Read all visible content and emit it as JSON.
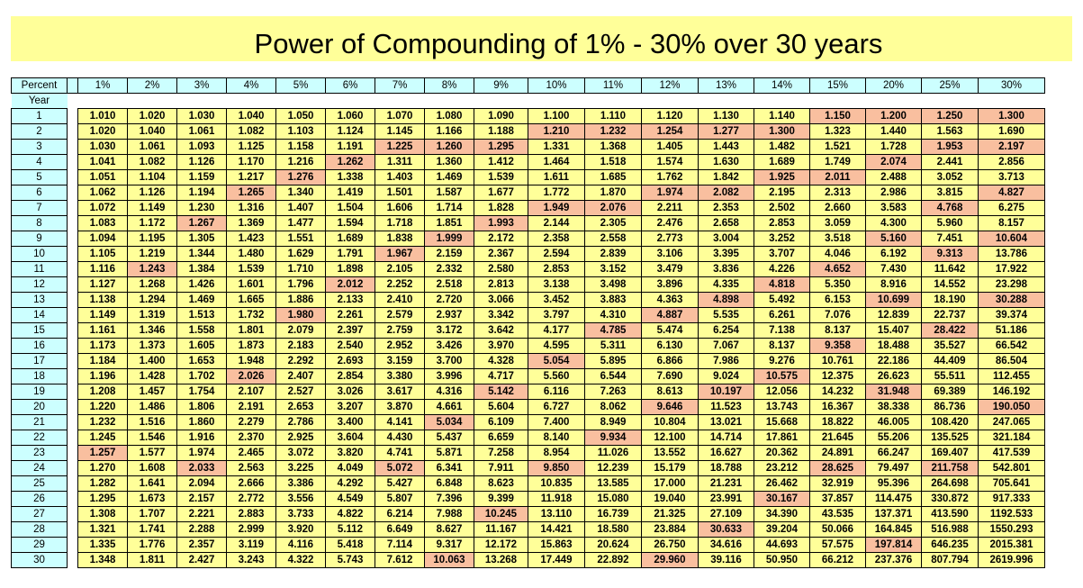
{
  "title": "Power of Compounding of 1% - 30% over 30 years",
  "header": {
    "corner_label": "Percent",
    "year_label": "Year",
    "percents": [
      "1%",
      "2%",
      "3%",
      "4%",
      "5%",
      "6%",
      "7%",
      "8%",
      "9%",
      "10%",
      "11%",
      "12%",
      "13%",
      "14%",
      "15%",
      "20%",
      "25%",
      "30%"
    ]
  },
  "colors": {
    "title_band": "#ffff99",
    "header_fill": "#ccffff",
    "cell_fill": "#ffff99",
    "highlight_fill": "#f9bf9f"
  },
  "rows": [
    {
      "year": "1",
      "values": [
        "1.010",
        "1.020",
        "1.030",
        "1.040",
        "1.050",
        "1.060",
        "1.070",
        "1.080",
        "1.090",
        "1.100",
        "1.110",
        "1.120",
        "1.130",
        "1.140",
        "1.150",
        "1.200",
        "1.250",
        "1.300"
      ],
      "highlight": [
        14,
        15,
        16,
        17
      ]
    },
    {
      "year": "2",
      "values": [
        "1.020",
        "1.040",
        "1.061",
        "1.082",
        "1.103",
        "1.124",
        "1.145",
        "1.166",
        "1.188",
        "1.210",
        "1.232",
        "1.254",
        "1.277",
        "1.300",
        "1.323",
        "1.440",
        "1.563",
        "1.690"
      ],
      "highlight": [
        9,
        10,
        11,
        12,
        13
      ]
    },
    {
      "year": "3",
      "values": [
        "1.030",
        "1.061",
        "1.093",
        "1.125",
        "1.158",
        "1.191",
        "1.225",
        "1.260",
        "1.295",
        "1.331",
        "1.368",
        "1.405",
        "1.443",
        "1.482",
        "1.521",
        "1.728",
        "1.953",
        "2.197"
      ],
      "highlight": [
        6,
        7,
        8,
        16,
        17
      ]
    },
    {
      "year": "4",
      "values": [
        "1.041",
        "1.082",
        "1.126",
        "1.170",
        "1.216",
        "1.262",
        "1.311",
        "1.360",
        "1.412",
        "1.464",
        "1.518",
        "1.574",
        "1.630",
        "1.689",
        "1.749",
        "2.074",
        "2.441",
        "2.856"
      ],
      "highlight": [
        5,
        15
      ]
    },
    {
      "year": "5",
      "values": [
        "1.051",
        "1.104",
        "1.159",
        "1.217",
        "1.276",
        "1.338",
        "1.403",
        "1.469",
        "1.539",
        "1.611",
        "1.685",
        "1.762",
        "1.842",
        "1.925",
        "2.011",
        "2.488",
        "3.052",
        "3.713"
      ],
      "highlight": [
        4,
        13,
        14
      ]
    },
    {
      "year": "6",
      "values": [
        "1.062",
        "1.126",
        "1.194",
        "1.265",
        "1.340",
        "1.419",
        "1.501",
        "1.587",
        "1.677",
        "1.772",
        "1.870",
        "1.974",
        "2.082",
        "2.195",
        "2.313",
        "2.986",
        "3.815",
        "4.827"
      ],
      "highlight": [
        3,
        11,
        12,
        17
      ]
    },
    {
      "year": "7",
      "values": [
        "1.072",
        "1.149",
        "1.230",
        "1.316",
        "1.407",
        "1.504",
        "1.606",
        "1.714",
        "1.828",
        "1.949",
        "2.076",
        "2.211",
        "2.353",
        "2.502",
        "2.660",
        "3.583",
        "4.768",
        "6.275"
      ],
      "highlight": [
        9,
        10,
        16
      ]
    },
    {
      "year": "8",
      "values": [
        "1.083",
        "1.172",
        "1.267",
        "1.369",
        "1.477",
        "1.594",
        "1.718",
        "1.851",
        "1.993",
        "2.144",
        "2.305",
        "2.476",
        "2.658",
        "2.853",
        "3.059",
        "4.300",
        "5.960",
        "8.157"
      ],
      "highlight": [
        2,
        8
      ]
    },
    {
      "year": "9",
      "values": [
        "1.094",
        "1.195",
        "1.305",
        "1.423",
        "1.551",
        "1.689",
        "1.838",
        "1.999",
        "2.172",
        "2.358",
        "2.558",
        "2.773",
        "3.004",
        "3.252",
        "3.518",
        "5.160",
        "7.451",
        "10.604"
      ],
      "highlight": [
        7,
        15,
        17
      ]
    },
    {
      "year": "10",
      "values": [
        "1.105",
        "1.219",
        "1.344",
        "1.480",
        "1.629",
        "1.791",
        "1.967",
        "2.159",
        "2.367",
        "2.594",
        "2.839",
        "3.106",
        "3.395",
        "3.707",
        "4.046",
        "6.192",
        "9.313",
        "13.786"
      ],
      "highlight": [
        6,
        16
      ]
    },
    {
      "year": "11",
      "values": [
        "1.116",
        "1.243",
        "1.384",
        "1.539",
        "1.710",
        "1.898",
        "2.105",
        "2.332",
        "2.580",
        "2.853",
        "3.152",
        "3.479",
        "3.836",
        "4.226",
        "4.652",
        "7.430",
        "11.642",
        "17.922"
      ],
      "highlight": [
        1,
        14
      ]
    },
    {
      "year": "12",
      "values": [
        "1.127",
        "1.268",
        "1.426",
        "1.601",
        "1.796",
        "2.012",
        "2.252",
        "2.518",
        "2.813",
        "3.138",
        "3.498",
        "3.896",
        "4.335",
        "4.818",
        "5.350",
        "8.916",
        "14.552",
        "23.298"
      ],
      "highlight": [
        5,
        13
      ]
    },
    {
      "year": "13",
      "values": [
        "1.138",
        "1.294",
        "1.469",
        "1.665",
        "1.886",
        "2.133",
        "2.410",
        "2.720",
        "3.066",
        "3.452",
        "3.883",
        "4.363",
        "4.898",
        "5.492",
        "6.153",
        "10.699",
        "18.190",
        "30.288"
      ],
      "highlight": [
        12,
        15,
        17
      ]
    },
    {
      "year": "14",
      "values": [
        "1.149",
        "1.319",
        "1.513",
        "1.732",
        "1.980",
        "2.261",
        "2.579",
        "2.937",
        "3.342",
        "3.797",
        "4.310",
        "4.887",
        "5.535",
        "6.261",
        "7.076",
        "12.839",
        "22.737",
        "39.374"
      ],
      "highlight": [
        4,
        11
      ]
    },
    {
      "year": "15",
      "values": [
        "1.161",
        "1.346",
        "1.558",
        "1.801",
        "2.079",
        "2.397",
        "2.759",
        "3.172",
        "3.642",
        "4.177",
        "4.785",
        "5.474",
        "6.254",
        "7.138",
        "8.137",
        "15.407",
        "28.422",
        "51.186"
      ],
      "highlight": [
        10,
        16
      ]
    },
    {
      "year": "16",
      "values": [
        "1.173",
        "1.373",
        "1.605",
        "1.873",
        "2.183",
        "2.540",
        "2.952",
        "3.426",
        "3.970",
        "4.595",
        "5.311",
        "6.130",
        "7.067",
        "8.137",
        "9.358",
        "18.488",
        "35.527",
        "66.542"
      ],
      "highlight": [
        14
      ]
    },
    {
      "year": "17",
      "values": [
        "1.184",
        "1.400",
        "1.653",
        "1.948",
        "2.292",
        "2.693",
        "3.159",
        "3.700",
        "4.328",
        "5.054",
        "5.895",
        "6.866",
        "7.986",
        "9.276",
        "10.761",
        "22.186",
        "44.409",
        "86.504"
      ],
      "highlight": [
        9
      ]
    },
    {
      "year": "18",
      "values": [
        "1.196",
        "1.428",
        "1.702",
        "2.026",
        "2.407",
        "2.854",
        "3.380",
        "3.996",
        "4.717",
        "5.560",
        "6.544",
        "7.690",
        "9.024",
        "10.575",
        "12.375",
        "26.623",
        "55.511",
        "112.455"
      ],
      "highlight": [
        3,
        13
      ]
    },
    {
      "year": "19",
      "values": [
        "1.208",
        "1.457",
        "1.754",
        "2.107",
        "2.527",
        "3.026",
        "3.617",
        "4.316",
        "5.142",
        "6.116",
        "7.263",
        "8.613",
        "10.197",
        "12.056",
        "14.232",
        "31.948",
        "69.389",
        "146.192"
      ],
      "highlight": [
        8,
        12,
        15
      ]
    },
    {
      "year": "20",
      "values": [
        "1.220",
        "1.486",
        "1.806",
        "2.191",
        "2.653",
        "3.207",
        "3.870",
        "4.661",
        "5.604",
        "6.727",
        "8.062",
        "9.646",
        "11.523",
        "13.743",
        "16.367",
        "38.338",
        "86.736",
        "190.050"
      ],
      "highlight": [
        11,
        17
      ]
    },
    {
      "year": "21",
      "values": [
        "1.232",
        "1.516",
        "1.860",
        "2.279",
        "2.786",
        "3.400",
        "4.141",
        "5.034",
        "6.109",
        "7.400",
        "8.949",
        "10.804",
        "13.021",
        "15.668",
        "18.822",
        "46.005",
        "108.420",
        "247.065"
      ],
      "highlight": [
        7
      ]
    },
    {
      "year": "22",
      "values": [
        "1.245",
        "1.546",
        "1.916",
        "2.370",
        "2.925",
        "3.604",
        "4.430",
        "5.437",
        "6.659",
        "8.140",
        "9.934",
        "12.100",
        "14.714",
        "17.861",
        "21.645",
        "55.206",
        "135.525",
        "321.184"
      ],
      "highlight": [
        10
      ]
    },
    {
      "year": "23",
      "values": [
        "1.257",
        "1.577",
        "1.974",
        "2.465",
        "3.072",
        "3.820",
        "4.741",
        "5.871",
        "7.258",
        "8.954",
        "11.026",
        "13.552",
        "16.627",
        "20.362",
        "24.891",
        "66.247",
        "169.407",
        "417.539"
      ],
      "highlight": [
        0
      ]
    },
    {
      "year": "24",
      "values": [
        "1.270",
        "1.608",
        "2.033",
        "2.563",
        "3.225",
        "4.049",
        "5.072",
        "6.341",
        "7.911",
        "9.850",
        "12.239",
        "15.179",
        "18.788",
        "23.212",
        "28.625",
        "79.497",
        "211.758",
        "542.801"
      ],
      "highlight": [
        2,
        6,
        9,
        14,
        16
      ]
    },
    {
      "year": "25",
      "values": [
        "1.282",
        "1.641",
        "2.094",
        "2.666",
        "3.386",
        "4.292",
        "5.427",
        "6.848",
        "8.623",
        "10.835",
        "13.585",
        "17.000",
        "21.231",
        "26.462",
        "32.919",
        "95.396",
        "264.698",
        "705.641"
      ],
      "highlight": []
    },
    {
      "year": "26",
      "values": [
        "1.295",
        "1.673",
        "2.157",
        "2.772",
        "3.556",
        "4.549",
        "5.807",
        "7.396",
        "9.399",
        "11.918",
        "15.080",
        "19.040",
        "23.991",
        "30.167",
        "37.857",
        "114.475",
        "330.872",
        "917.333"
      ],
      "highlight": [
        13
      ]
    },
    {
      "year": "27",
      "values": [
        "1.308",
        "1.707",
        "2.221",
        "2.883",
        "3.733",
        "4.822",
        "6.214",
        "7.988",
        "10.245",
        "13.110",
        "16.739",
        "21.325",
        "27.109",
        "34.390",
        "43.535",
        "137.371",
        "413.590",
        "1192.533"
      ],
      "highlight": [
        8
      ]
    },
    {
      "year": "28",
      "values": [
        "1.321",
        "1.741",
        "2.288",
        "2.999",
        "3.920",
        "5.112",
        "6.649",
        "8.627",
        "11.167",
        "14.421",
        "18.580",
        "23.884",
        "30.633",
        "39.204",
        "50.066",
        "164.845",
        "516.988",
        "1550.293"
      ],
      "highlight": [
        12
      ]
    },
    {
      "year": "29",
      "values": [
        "1.335",
        "1.776",
        "2.357",
        "3.119",
        "4.116",
        "5.418",
        "7.114",
        "9.317",
        "12.172",
        "15.863",
        "20.624",
        "26.750",
        "34.616",
        "44.693",
        "57.575",
        "197.814",
        "646.235",
        "2015.381"
      ],
      "highlight": [
        15
      ]
    },
    {
      "year": "30",
      "values": [
        "1.348",
        "1.811",
        "2.427",
        "3.243",
        "4.322",
        "5.743",
        "7.612",
        "10.063",
        "13.268",
        "17.449",
        "22.892",
        "29.960",
        "39.116",
        "50.950",
        "66.212",
        "237.376",
        "807.794",
        "2619.996"
      ],
      "highlight": [
        7,
        11
      ]
    }
  ]
}
